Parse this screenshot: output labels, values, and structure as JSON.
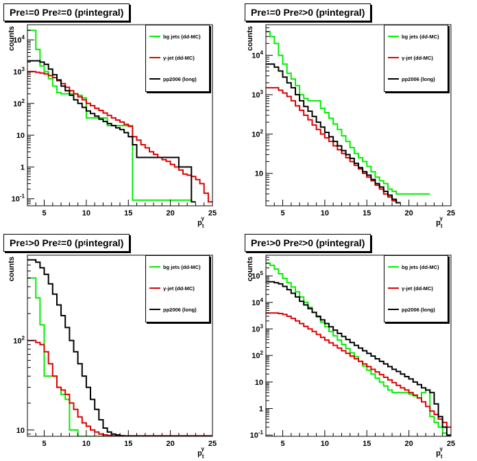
{
  "colors": {
    "bg_jets": "#00ee00",
    "gamma_jet": "#dd0000",
    "pp2006": "#000000",
    "frame": "#000000"
  },
  "legend_labels": [
    "bg jets (dd-MC)",
    "γ-jet (dd-MC)",
    "pp2006 (long)"
  ],
  "xlabel": {
    "main": "p",
    "sub": "t",
    "sup": "γ"
  },
  "ylabel": "counts",
  "panels": [
    {
      "title": {
        "p1": "Pre",
        "s1": "1",
        "p2": "=0  Pre",
        "s2": "2",
        "p3": "=0  (p",
        "s3": "t",
        "p4": " integral)"
      }
    },
    {
      "title": {
        "p1": "Pre",
        "s1": "1",
        "p2": "=0  Pre",
        "s2": "2",
        "p3": ">0  (p",
        "s3": "t",
        "p4": " integral)"
      }
    },
    {
      "title": {
        "p1": "Pre",
        "s1": "1",
        "p2": ">0  Pre",
        "s2": "2",
        "p3": "=0  (p",
        "s3": "t",
        "p4": " integral)"
      }
    },
    {
      "title": {
        "p1": "Pre",
        "s1": "1",
        "p2": ">0  Pre",
        "s2": "2",
        "p3": ">0  (p",
        "s3": "t",
        "p4": " integral)"
      }
    }
  ],
  "chart_data": [
    {
      "type": "line",
      "step": true,
      "yscale": "log",
      "xlim": [
        3,
        25
      ],
      "ylim": [
        0.06,
        30000
      ],
      "xticks": [
        5,
        10,
        15,
        20,
        25
      ],
      "yticks": [
        {
          "v": 0.1,
          "base": "10",
          "exp": "-1"
        },
        {
          "v": 1,
          "label": "1"
        },
        {
          "v": 10,
          "label": "10"
        },
        {
          "v": 100,
          "base": "10",
          "exp": "2"
        },
        {
          "v": 1000,
          "base": "10",
          "exp": "3"
        },
        {
          "v": 10000,
          "base": "10",
          "exp": "4"
        }
      ],
      "edges": [
        3,
        3.5,
        4,
        4.5,
        5,
        5.5,
        6,
        6.5,
        7,
        7.5,
        8,
        8.5,
        9,
        9.5,
        10,
        10.5,
        11,
        11.5,
        12,
        12.5,
        13,
        13.5,
        14,
        14.5,
        15,
        15.5,
        16,
        16.5,
        17,
        17.5,
        18,
        18.5,
        19,
        19.5,
        20,
        20.5,
        21,
        21.5,
        22,
        22.5,
        23,
        23.5,
        24,
        24.5,
        25
      ],
      "series": [
        {
          "name": "bg jets (dd-MC)",
          "key": "bg_jets",
          "values": [
            20000,
            20000,
            5000,
            1500,
            1000,
            600,
            350,
            220,
            200,
            200,
            200,
            200,
            180,
            150,
            35,
            35,
            35,
            35,
            35,
            20,
            20,
            20,
            20,
            20,
            20,
            0.09,
            0.09,
            0.09,
            0.09,
            0.09,
            0.09,
            0.09,
            0.09,
            0.09,
            0.09,
            0.09,
            0.09,
            0.09,
            0.09,
            null,
            null,
            null,
            null,
            null
          ]
        },
        {
          "name": "γ-jet (dd-MC)",
          "key": "gamma_jet",
          "values": [
            1000,
            1000,
            950,
            900,
            850,
            750,
            650,
            520,
            420,
            320,
            250,
            200,
            160,
            130,
            100,
            85,
            70,
            60,
            50,
            42,
            35,
            30,
            26,
            22,
            19,
            9,
            7,
            5,
            4,
            3,
            2.5,
            2,
            1.7,
            1.5,
            1.2,
            1,
            0.8,
            0.6,
            0.55,
            0.5,
            0.4,
            0.3,
            0.15,
            0.08
          ]
        },
        {
          "name": "pp2006 (long)",
          "key": "pp2006",
          "values": [
            2200,
            2200,
            2200,
            2000,
            1700,
            1200,
            800,
            550,
            350,
            250,
            180,
            130,
            100,
            75,
            58,
            48,
            40,
            32,
            27,
            23,
            20,
            17,
            15,
            12,
            9,
            5,
            2,
            2,
            2,
            2,
            2,
            2,
            2,
            2,
            2,
            2,
            1,
            1,
            1,
            0.08,
            null,
            null,
            null,
            null
          ]
        }
      ]
    },
    {
      "type": "line",
      "step": true,
      "yscale": "log",
      "xlim": [
        3,
        25
      ],
      "ylim": [
        1.5,
        60000
      ],
      "xticks": [
        5,
        10,
        15,
        20,
        25
      ],
      "yticks": [
        {
          "v": 10,
          "label": "10"
        },
        {
          "v": 100,
          "base": "10",
          "exp": "2"
        },
        {
          "v": 1000,
          "base": "10",
          "exp": "3"
        },
        {
          "v": 10000,
          "base": "10",
          "exp": "4"
        }
      ],
      "edges": [
        3,
        3.5,
        4,
        4.5,
        5,
        5.5,
        6,
        6.5,
        7,
        7.5,
        8,
        8.5,
        9,
        9.5,
        10,
        10.5,
        11,
        11.5,
        12,
        12.5,
        13,
        13.5,
        14,
        14.5,
        15,
        15.5,
        16,
        16.5,
        17,
        17.5,
        18,
        18.5,
        19,
        19.5,
        20,
        20.5,
        21,
        21.5,
        22,
        22.5,
        23,
        23.5,
        24,
        24.5,
        25
      ],
      "series": [
        {
          "name": "bg jets (dd-MC)",
          "key": "bg_jets",
          "values": [
            40000,
            30000,
            20000,
            10000,
            6000,
            3500,
            2500,
            1700,
            1000,
            800,
            700,
            700,
            700,
            450,
            350,
            250,
            180,
            130,
            90,
            65,
            45,
            32,
            25,
            20,
            15,
            11,
            8,
            6.5,
            5.5,
            4,
            3.5,
            3,
            3,
            3,
            3,
            3,
            3,
            3,
            3,
            null,
            null,
            null,
            null,
            null
          ]
        },
        {
          "name": "γ-jet (dd-MC)",
          "key": "gamma_jet",
          "values": [
            1500,
            1500,
            1500,
            1300,
            1100,
            900,
            700,
            520,
            400,
            300,
            230,
            170,
            130,
            100,
            80,
            65,
            50,
            40,
            32,
            25,
            20,
            16,
            13,
            10,
            8,
            6.5,
            5,
            4,
            3,
            2.5,
            2,
            1.8,
            null,
            null,
            null,
            null,
            null,
            null,
            null,
            null,
            null,
            null,
            null,
            null
          ]
        },
        {
          "name": "pp2006 (long)",
          "key": "pp2006",
          "values": [
            6000,
            6000,
            5000,
            4000,
            2800,
            2000,
            1500,
            1000,
            700,
            500,
            380,
            280,
            200,
            150,
            110,
            85,
            65,
            50,
            38,
            30,
            24,
            18,
            14,
            11,
            9,
            7,
            5.5,
            4.5,
            3.5,
            2.8,
            2.2,
            1.8,
            null,
            null,
            null,
            null,
            null,
            null,
            null,
            null,
            null,
            null,
            null,
            null
          ]
        }
      ]
    },
    {
      "type": "line",
      "step": true,
      "yscale": "log",
      "xlim": [
        3,
        25
      ],
      "ylim": [
        8.5,
        900
      ],
      "xticks": [
        5,
        10,
        15,
        20,
        25
      ],
      "yticks": [
        {
          "v": 10,
          "label": "10"
        },
        {
          "v": 100,
          "base": "10",
          "exp": "2"
        }
      ],
      "edges": [
        3,
        3.5,
        4,
        4.5,
        5,
        5.5,
        6,
        6.5,
        7,
        7.5,
        8,
        8.5,
        9,
        9.5,
        10,
        10.5,
        11,
        11.5,
        12,
        12.5,
        13,
        13.5,
        14,
        14.5,
        15,
        15.5,
        16,
        16.5,
        17,
        17.5,
        18,
        18.5,
        19,
        19.5,
        20,
        20.5,
        21,
        21.5,
        22,
        22.5,
        23,
        23.5,
        24,
        24.5,
        25
      ],
      "series": [
        {
          "name": "bg jets (dd-MC)",
          "key": "bg_jets",
          "values": [
            500,
            500,
            300,
            150,
            40,
            40,
            40,
            30,
            25,
            22,
            10,
            10,
            8,
            8,
            8,
            8,
            8,
            8,
            8,
            8,
            8,
            8,
            8,
            8,
            8,
            8,
            8,
            8,
            8,
            8,
            8,
            8,
            8,
            8,
            8,
            8,
            8,
            8,
            8,
            8,
            8,
            8,
            8,
            8
          ]
        },
        {
          "name": "γ-jet (dd-MC)",
          "key": "gamma_jet",
          "values": [
            100,
            100,
            95,
            90,
            75,
            55,
            40,
            30,
            28,
            25,
            20,
            17,
            14,
            12,
            11,
            10,
            9.5,
            9,
            8.8,
            8.7,
            8.6,
            8.6,
            8.6,
            8.6,
            8.6,
            8.6,
            8.6,
            8.6,
            8.6,
            8.6,
            8.6,
            8.6,
            8.6,
            8.6,
            8.6,
            8.6,
            8.6,
            8.6,
            8.6,
            8.6,
            8.6,
            8.6,
            8.6,
            8.6
          ]
        },
        {
          "name": "pp2006 (long)",
          "key": "pp2006",
          "values": [
            800,
            800,
            750,
            650,
            550,
            430,
            330,
            250,
            190,
            140,
            100,
            75,
            55,
            40,
            30,
            22,
            17,
            13,
            10.5,
            9.5,
            9,
            8.8,
            8.6,
            8.5,
            8.5,
            8.5,
            8.5,
            8.5,
            8.5,
            8.5,
            8.5,
            8.5,
            8.5,
            8.5,
            8.5,
            8.5,
            8.5,
            8.5,
            8.5,
            8.5,
            8.5,
            8.5,
            8.5,
            8.5
          ]
        }
      ]
    },
    {
      "type": "line",
      "step": true,
      "yscale": "log",
      "xlim": [
        3,
        25
      ],
      "ylim": [
        0.09,
        600000
      ],
      "xticks": [
        5,
        10,
        15,
        20,
        25
      ],
      "yticks": [
        {
          "v": 0.1,
          "base": "10",
          "exp": "-1"
        },
        {
          "v": 1,
          "label": "1"
        },
        {
          "v": 10,
          "label": "10"
        },
        {
          "v": 100,
          "base": "10",
          "exp": "2"
        },
        {
          "v": 1000,
          "base": "10",
          "exp": "3"
        },
        {
          "v": 10000,
          "base": "10",
          "exp": "4"
        },
        {
          "v": 100000,
          "base": "10",
          "exp": "5"
        }
      ],
      "edges": [
        3,
        3.5,
        4,
        4.5,
        5,
        5.5,
        6,
        6.5,
        7,
        7.5,
        8,
        8.5,
        9,
        9.5,
        10,
        10.5,
        11,
        11.5,
        12,
        12.5,
        13,
        13.5,
        14,
        14.5,
        15,
        15.5,
        16,
        16.5,
        17,
        17.5,
        18,
        18.5,
        19,
        19.5,
        20,
        20.5,
        21,
        21.5,
        22,
        22.5,
        23,
        23.5,
        24,
        24.5,
        25
      ],
      "series": [
        {
          "name": "bg jets (dd-MC)",
          "key": "bg_jets",
          "values": [
            300000,
            250000,
            180000,
            120000,
            80000,
            55000,
            38000,
            25000,
            16000,
            10000,
            6500,
            4200,
            2800,
            1800,
            1200,
            800,
            550,
            380,
            260,
            180,
            125,
            90,
            60,
            40,
            28,
            20,
            14,
            10,
            7,
            5,
            4,
            4,
            4,
            4,
            3.5,
            3,
            2.5,
            4,
            5,
            0.5,
            0.3,
            0.2,
            0.12,
            0.1
          ]
        },
        {
          "name": "γ-jet (dd-MC)",
          "key": "gamma_jet",
          "values": [
            4000,
            4000,
            4000,
            3800,
            3500,
            3000,
            2500,
            2000,
            1600,
            1250,
            1000,
            800,
            620,
            480,
            380,
            300,
            240,
            190,
            150,
            120,
            95,
            75,
            60,
            48,
            38,
            30,
            24,
            19,
            15,
            12,
            9.5,
            7.5,
            6,
            5,
            4,
            3.2,
            2.5,
            1.8,
            1.2,
            0.8,
            0.6,
            0.4,
            0.3,
            0.2
          ]
        },
        {
          "name": "pp2006 (long)",
          "key": "pp2006",
          "values": [
            60000,
            60000,
            55000,
            50000,
            40000,
            30000,
            22000,
            16000,
            11000,
            8000,
            5800,
            4200,
            3000,
            2200,
            1600,
            1200,
            900,
            680,
            520,
            400,
            310,
            240,
            190,
            150,
            120,
            95,
            75,
            60,
            48,
            38,
            30,
            25,
            20,
            16,
            13,
            10,
            8,
            6,
            5,
            4,
            1.5,
            0.5,
            0.2,
            0.1
          ]
        }
      ]
    }
  ]
}
